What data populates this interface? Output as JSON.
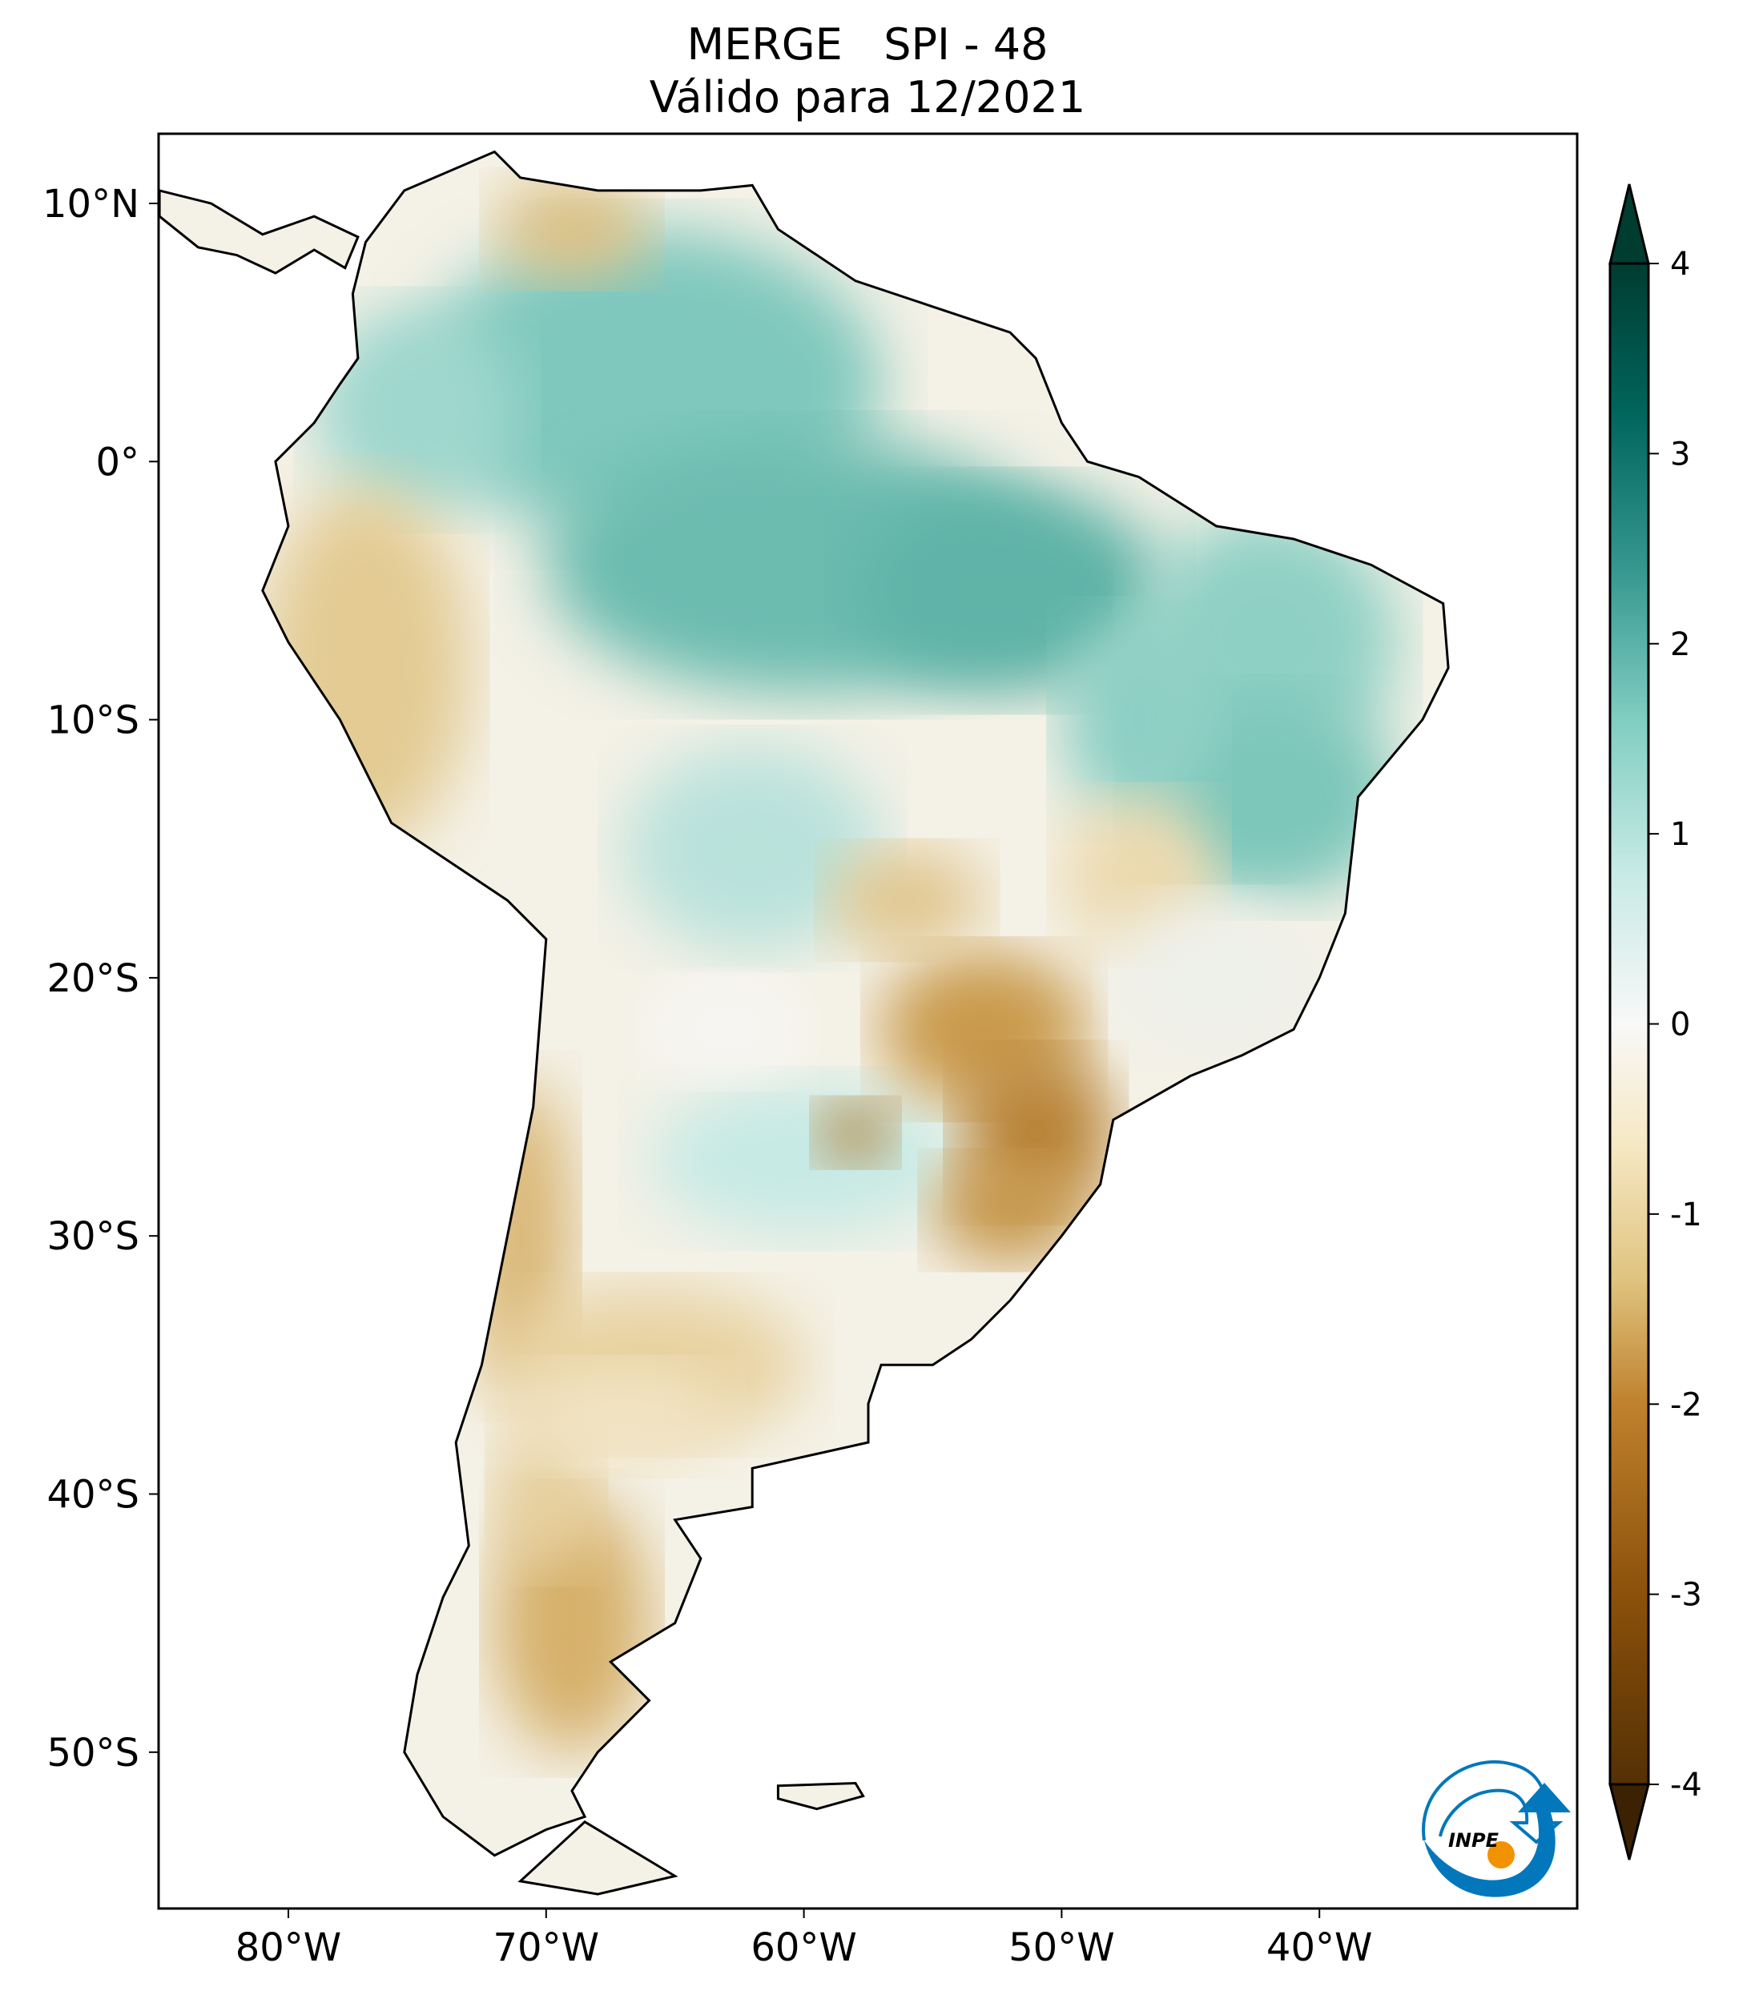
{
  "title": {
    "line1": "MERGE   SPI - 48",
    "line2": "Válido para 12/2021"
  },
  "map": {
    "lon_range": [
      -85,
      -30
    ],
    "lat_range": [
      -56,
      12.7
    ],
    "lon_ticks": [
      {
        "value": -80,
        "label": "80°W"
      },
      {
        "value": -70,
        "label": "70°W"
      },
      {
        "value": -60,
        "label": "60°W"
      },
      {
        "value": -50,
        "label": "50°W"
      },
      {
        "value": -40,
        "label": "40°W"
      }
    ],
    "lat_ticks": [
      {
        "value": 10,
        "label": "10°N"
      },
      {
        "value": 0,
        "label": "0°"
      },
      {
        "value": -10,
        "label": "10°S"
      },
      {
        "value": -20,
        "label": "20°S"
      },
      {
        "value": -30,
        "label": "30°S"
      },
      {
        "value": -40,
        "label": "40°S"
      },
      {
        "value": -50,
        "label": "50°S"
      }
    ],
    "variable": "SPI-48"
  },
  "colorbar": {
    "colormap": "BrBG",
    "range": [
      -4,
      4
    ],
    "extend": "both",
    "ticks": [
      {
        "value": 4,
        "label": "4"
      },
      {
        "value": 3,
        "label": "3"
      },
      {
        "value": 2,
        "label": "2"
      },
      {
        "value": 1,
        "label": "1"
      },
      {
        "value": 0,
        "label": "0"
      },
      {
        "value": -1,
        "label": "-1"
      },
      {
        "value": -2,
        "label": "-2"
      },
      {
        "value": -3,
        "label": "-3"
      },
      {
        "value": -4,
        "label": "-4"
      }
    ],
    "colors": [
      "#3c2203",
      "#543005",
      "#8c510a",
      "#bf812d",
      "#dfc27d",
      "#f6e8c3",
      "#ffffff",
      "#c7eae5",
      "#80cdc1",
      "#35978f",
      "#01665e",
      "#003c30"
    ]
  },
  "logo": {
    "text": "INPE",
    "colors": {
      "blue": "#0277bb",
      "orange": "#f39200"
    }
  }
}
